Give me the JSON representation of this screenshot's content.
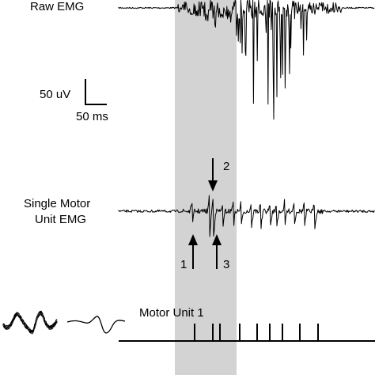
{
  "labels": {
    "raw_emg": "Raw EMG",
    "scale_amplitude": "50 uV",
    "scale_time": "50 ms",
    "single_motor_line1": "Single Motor",
    "single_motor_line2": "Unit EMG",
    "motor_unit_1": "Motor Unit 1"
  },
  "arrows": {
    "arrow_1": "1",
    "arrow_2": "2",
    "arrow_3": "3"
  },
  "colors": {
    "highlight": "#d3d3d3",
    "trace": "#000000",
    "overlay_trace": "#7a7a7a"
  }
}
